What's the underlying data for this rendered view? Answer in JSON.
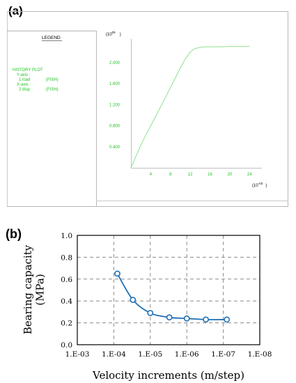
{
  "panel_a": {
    "label": "(a)",
    "legend_title": "LEGEND",
    "legend_lines": [
      "HISTORY PLOT",
      "Y-axis :",
      "1 load",
      "(FISH)",
      "X-axis :",
      "2 disp",
      "(FISH)"
    ],
    "y_multiplier": "(10",
    "y_multiplier_exp": "05",
    "y_multiplier_close": ")",
    "x_multiplier": "(10",
    "x_multiplier_exp": "-03",
    "x_multiplier_close": ")",
    "line_color": "#8fe28f",
    "text_color": "#1fc41f"
  },
  "panel_b": {
    "label": "(b)",
    "line_color": "#1f6fb5"
  },
  "chart_data": [
    {
      "type": "line",
      "xlabel": "",
      "ylabel": "",
      "x_ticks": [
        "4",
        "8",
        "12",
        "16",
        "20",
        "24"
      ],
      "y_ticks": [
        "0.400",
        "0.800",
        "1.200",
        "1.600",
        "2.000"
      ],
      "xlim": [
        0,
        26.5
      ],
      "ylim": [
        0,
        2.45
      ],
      "grid": false,
      "series": [
        {
          "x": [
            0,
            1,
            2,
            3,
            4,
            5,
            6,
            7,
            8,
            9,
            10,
            11,
            12,
            12.5,
            13,
            14,
            15,
            16,
            18,
            20,
            22,
            24
          ],
          "y": [
            0,
            0.22,
            0.43,
            0.62,
            0.8,
            0.98,
            1.16,
            1.34,
            1.53,
            1.71,
            1.9,
            2.07,
            2.2,
            2.24,
            2.27,
            2.29,
            2.3,
            2.3,
            2.3,
            2.31,
            2.31,
            2.31
          ]
        }
      ]
    },
    {
      "type": "line",
      "xlabel": "Velocity increments (m/step)",
      "ylabel": "Bearing capacity (MPa)",
      "x_ticks": [
        "1.E-03",
        "1.E-04",
        "1.E-05",
        "1.E-06",
        "1.E-07",
        "1.E-08"
      ],
      "y_ticks": [
        "0.0",
        "0.2",
        "0.4",
        "0.6",
        "0.8",
        "1.0"
      ],
      "x_scale": "log-reversed",
      "xlim": [
        0.001,
        1e-08
      ],
      "ylim": [
        0,
        1.0
      ],
      "grid": true,
      "series": [
        {
          "x": [
            8e-05,
            3e-05,
            1e-05,
            3e-06,
            1e-06,
            3e-07,
            8e-08
          ],
          "y": [
            0.65,
            0.41,
            0.29,
            0.25,
            0.24,
            0.23,
            0.23
          ]
        }
      ]
    }
  ]
}
